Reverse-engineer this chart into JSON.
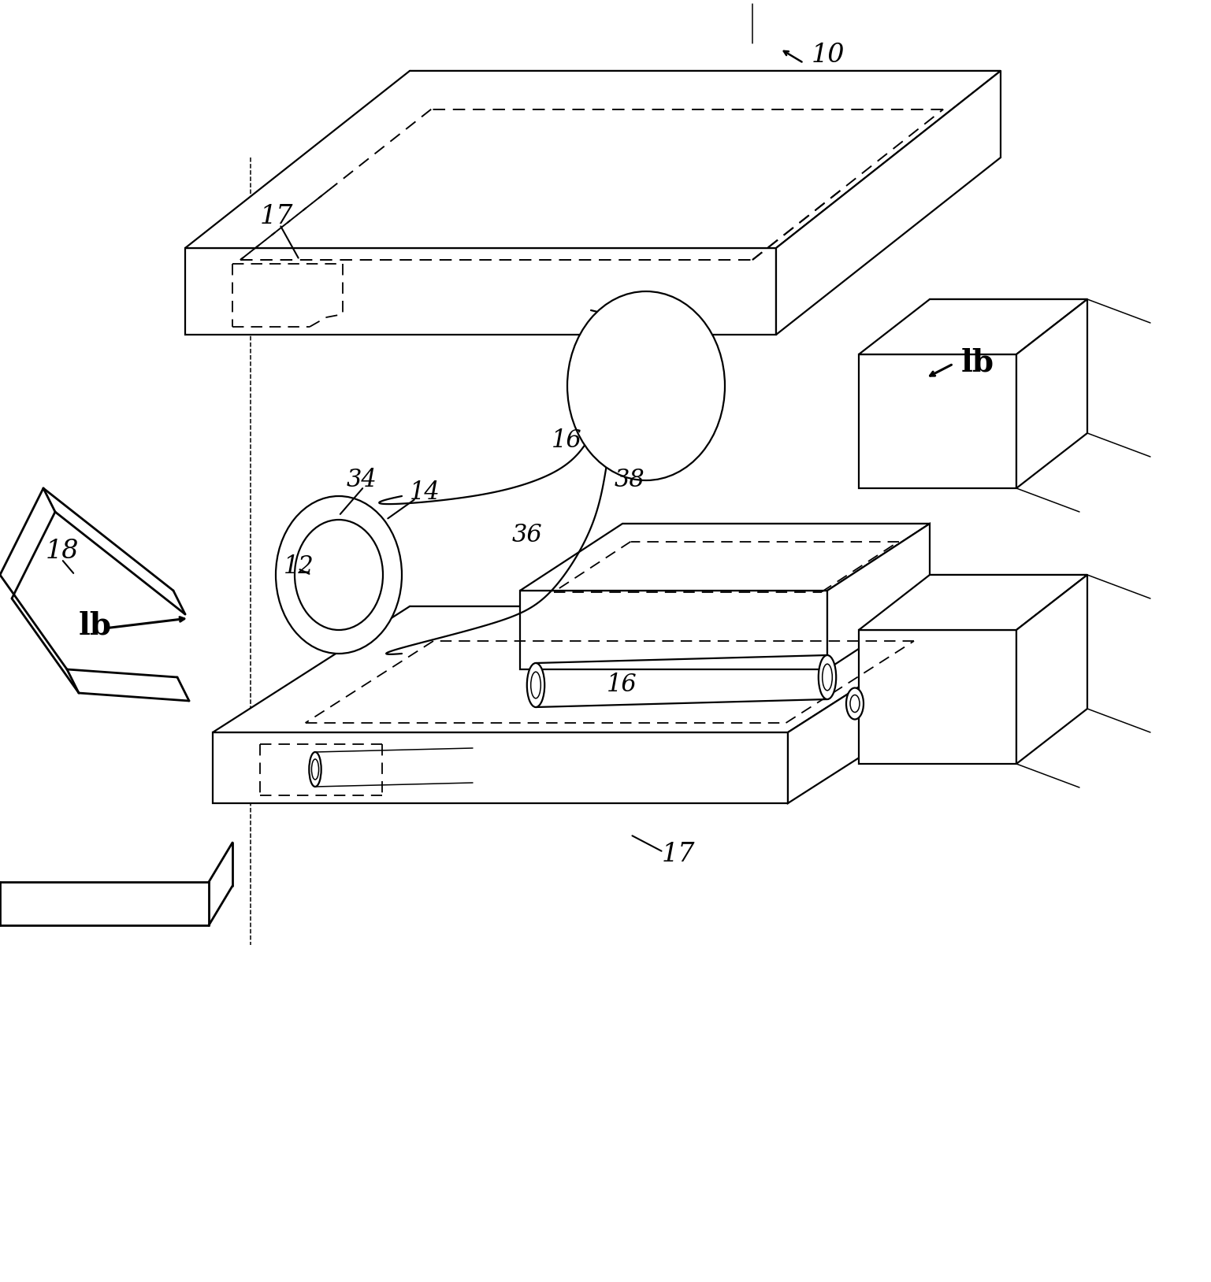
{
  "background_color": "#ffffff",
  "line_color": "#000000",
  "figsize": [
    15.37,
    16.28
  ],
  "dpi": 100,
  "lw_main": 1.6,
  "lw_thin": 1.1,
  "lw_thick": 2.0
}
